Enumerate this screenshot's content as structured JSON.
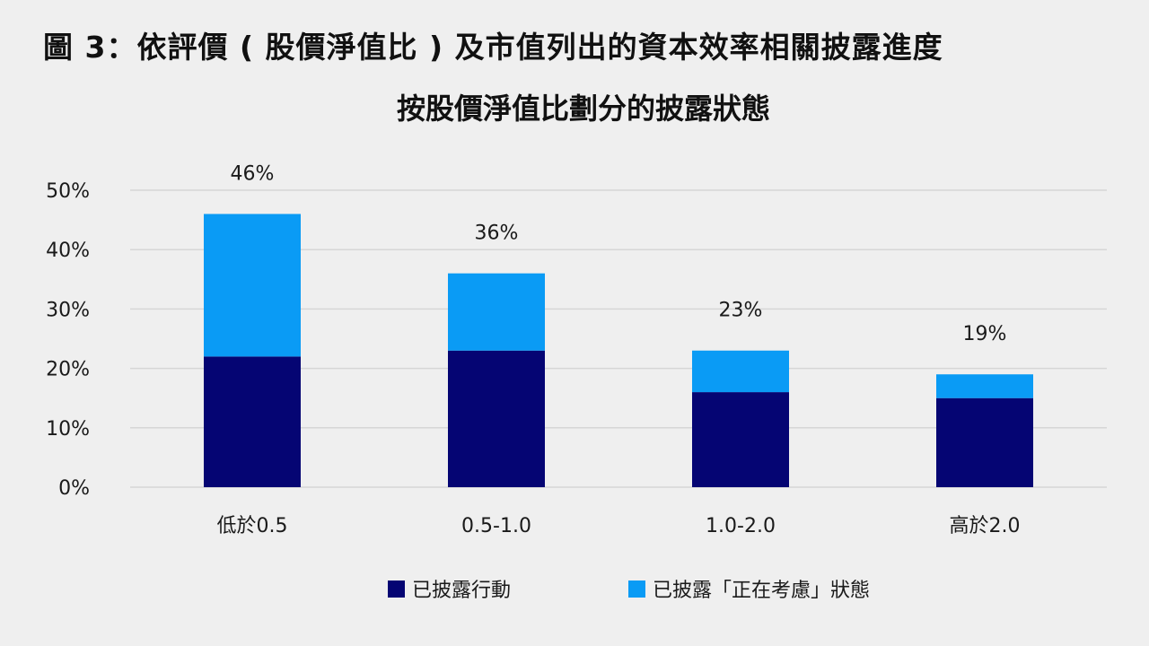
{
  "page": {
    "title": "圖 3：依評價 ( 股價淨值比 ) 及市值列出的資本效率相關披露進度"
  },
  "chart_data": {
    "type": "bar",
    "stacked": true,
    "title": "按股價淨值比劃分的披露狀態",
    "xlabel": "",
    "ylabel": "",
    "categories": [
      "低於0.5",
      "0.5-1.0",
      "1.0-2.0",
      "高於2.0"
    ],
    "series": [
      {
        "name": "已披露行動",
        "color": "#050573",
        "values": [
          22,
          23,
          16,
          15
        ]
      },
      {
        "name": "已披露「正在考慮」狀態",
        "color": "#0a9bf5",
        "values": [
          24,
          13,
          7,
          4
        ]
      }
    ],
    "totals": [
      46,
      36,
      23,
      19
    ],
    "total_labels": [
      "46%",
      "36%",
      "23%",
      "19%"
    ],
    "yticks": [
      0,
      10,
      20,
      30,
      40,
      50
    ],
    "ytick_labels": [
      "0%",
      "10%",
      "20%",
      "30%",
      "40%",
      "50%"
    ],
    "ylim": [
      0,
      50
    ],
    "grid": true,
    "legend_position": "bottom-center"
  },
  "legend": {
    "items": [
      {
        "label": "已披露行動",
        "color": "#050573"
      },
      {
        "label": "已披露「正在考慮」狀態",
        "color": "#0a9bf5"
      }
    ]
  }
}
